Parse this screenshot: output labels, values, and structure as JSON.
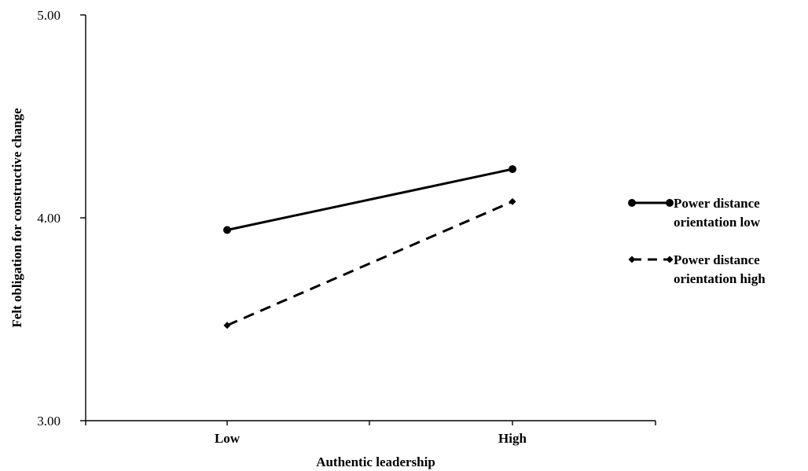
{
  "chart_data": {
    "type": "line",
    "title": "",
    "xlabel": "Authentic leadership",
    "ylabel": "Felt obligation for constructive change",
    "categories": [
      "Low",
      "High"
    ],
    "ylim": [
      3.0,
      5.0
    ],
    "yticks": [
      "3.00",
      "4.00",
      "5.00"
    ],
    "grid": false,
    "legend_position": "right",
    "series": [
      {
        "name_lines": [
          "Power distance",
          "orientation low"
        ],
        "values": [
          3.94,
          4.24
        ],
        "line_style": "solid",
        "marker": "circle",
        "color": "#000000"
      },
      {
        "name_lines": [
          "Power distance",
          "orientation high"
        ],
        "values": [
          3.47,
          4.08
        ],
        "line_style": "dashed",
        "marker": "diamond",
        "color": "#000000"
      }
    ]
  }
}
